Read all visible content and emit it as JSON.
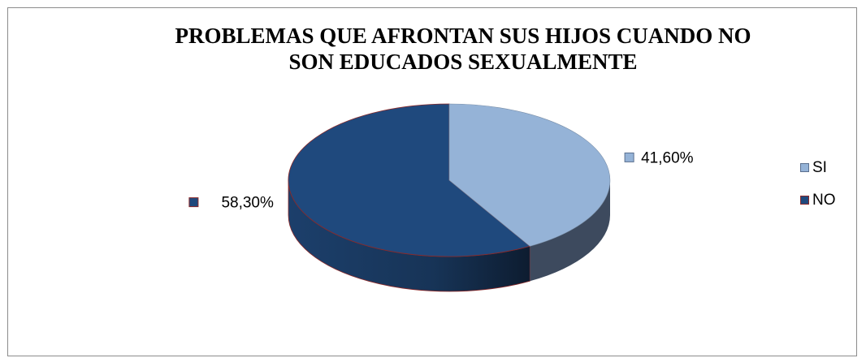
{
  "chart_data": {
    "type": "pie",
    "title": "PROBLEMAS QUE AFRONTAN SUS HIJOS CUANDO NO SON EDUCADOS SEXUALMENTE",
    "title_lines": [
      "PROBLEMAS QUE AFRONTAN SUS HIJOS CUANDO NO",
      "SON EDUCADOS SEXUALMENTE"
    ],
    "style": "3d",
    "slices": [
      {
        "name": "SI",
        "value": 41.6,
        "label": "41,60%",
        "color": "#95b3d7",
        "side_color": "#3d4a5e"
      },
      {
        "name": "NO",
        "value": 58.3,
        "label": "58,30%",
        "color": "#1f497d",
        "side_color": "#17365d"
      }
    ],
    "legend": {
      "position": "right",
      "items": [
        "SI",
        "NO"
      ]
    }
  }
}
